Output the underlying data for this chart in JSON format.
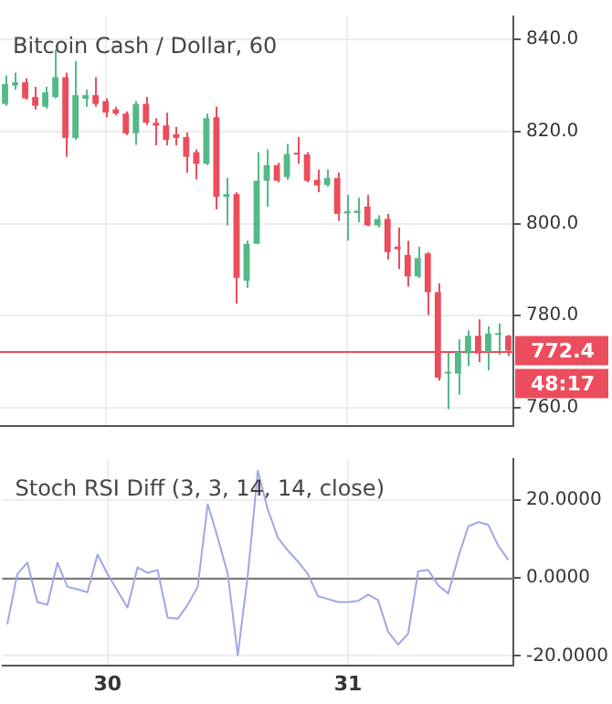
{
  "chart_data": [
    {
      "type": "candlestick",
      "title": "Bitcoin Cash / Dollar, 60",
      "categories": [
        null,
        null,
        null,
        null,
        null,
        null,
        null,
        null,
        null,
        null,
        "30",
        null,
        null,
        null,
        null,
        null,
        null,
        null,
        null,
        null,
        null,
        null,
        null,
        null,
        null,
        null,
        null,
        null,
        null,
        null,
        null,
        null,
        null,
        null,
        "31",
        null,
        null,
        null,
        null,
        null,
        null,
        null,
        null,
        null,
        null,
        null,
        null,
        null,
        null,
        null,
        null
      ],
      "ohlc": [
        [
          826.0,
          832.2,
          825.6,
          830.3
        ],
        [
          830.0,
          832.8,
          829.1,
          830.7
        ],
        [
          830.7,
          831.6,
          826.9,
          827.2
        ],
        [
          827.5,
          829.7,
          824.8,
          825.6
        ],
        [
          825.4,
          829.7,
          825.0,
          828.5
        ],
        [
          827.5,
          837.8,
          827.2,
          831.8
        ],
        [
          831.8,
          832.8,
          814.5,
          818.6
        ],
        [
          818.6,
          835.3,
          818.2,
          827.9
        ],
        [
          827.1,
          829.1,
          825.4,
          827.9
        ],
        [
          827.9,
          831.8,
          825.4,
          826.0
        ],
        [
          826.6,
          827.2,
          823.1,
          824.1
        ],
        [
          824.8,
          825.4,
          823.5,
          823.9
        ],
        [
          823.9,
          824.4,
          819.2,
          819.6
        ],
        [
          819.6,
          826.6,
          817.1,
          826.0
        ],
        [
          826.0,
          827.5,
          821.4,
          821.9
        ],
        [
          821.9,
          822.9,
          817.0,
          821.3
        ],
        [
          821.3,
          824.1,
          817.0,
          818.2
        ],
        [
          819.4,
          821.0,
          817.0,
          818.6
        ],
        [
          818.8,
          819.8,
          811.1,
          814.5
        ],
        [
          815.5,
          816.1,
          809.6,
          813.0
        ],
        [
          813.0,
          823.9,
          812.7,
          822.9
        ],
        [
          823.1,
          825.4,
          803.1,
          805.8
        ],
        [
          805.8,
          809.9,
          799.6,
          806.4
        ],
        [
          806.4,
          806.8,
          782.6,
          788.2
        ],
        [
          787.6,
          796.3,
          786.0,
          795.6
        ],
        [
          795.6,
          815.5,
          795.6,
          809.3
        ],
        [
          809.3,
          816.1,
          803.7,
          812.7
        ],
        [
          812.7,
          813.2,
          809.0,
          809.3
        ],
        [
          810.1,
          817.3,
          809.5,
          815.1
        ],
        [
          815.3,
          818.8,
          813.0,
          815.0
        ],
        [
          815.0,
          815.5,
          809.0,
          809.3
        ],
        [
          809.5,
          811.7,
          806.8,
          808.3
        ],
        [
          808.4,
          811.7,
          808.0,
          809.9
        ],
        [
          809.9,
          811.1,
          800.6,
          802.1
        ],
        [
          802.2,
          806.2,
          796.3,
          802.7
        ],
        [
          802.3,
          805.6,
          800.3,
          802.8
        ],
        [
          803.7,
          806.2,
          799.4,
          799.6
        ],
        [
          799.6,
          801.8,
          799.1,
          801.0
        ],
        [
          801.0,
          802.1,
          792.2,
          793.8
        ],
        [
          795.0,
          799.1,
          790.1,
          794.4
        ],
        [
          793.2,
          796.3,
          786.3,
          788.5
        ],
        [
          788.5,
          795.0,
          788.2,
          792.5
        ],
        [
          793.5,
          793.8,
          780.1,
          785.1
        ],
        [
          785.1,
          787.0,
          765.9,
          766.5
        ],
        [
          767.4,
          772.1,
          759.7,
          767.8
        ],
        [
          767.4,
          774.8,
          762.8,
          772.1
        ],
        [
          771.8,
          776.8,
          769.0,
          775.6
        ],
        [
          775.6,
          779.2,
          769.9,
          771.8
        ],
        [
          772.1,
          777.7,
          768.1,
          776.1
        ],
        [
          775.8,
          778.3,
          771.5,
          776.2
        ],
        [
          775.6,
          775.8,
          771.2,
          772.4
        ]
      ],
      "colors": [
        "#53b987",
        "#53b987",
        "#eb4d5c",
        "#eb4d5c",
        "#53b987",
        "#53b987",
        "#eb4d5c",
        "#53b987",
        "#53b987",
        "#eb4d5c",
        "#eb4d5c",
        "#eb4d5c",
        "#eb4d5c",
        "#53b987",
        "#eb4d5c",
        "#eb4d5c",
        "#eb4d5c",
        "#eb4d5c",
        "#eb4d5c",
        "#eb4d5c",
        "#53b987",
        "#eb4d5c",
        "#53b987",
        "#eb4d5c",
        "#53b987",
        "#53b987",
        "#53b987",
        "#eb4d5c",
        "#53b987",
        "#eb4d5c",
        "#eb4d5c",
        "#eb4d5c",
        "#53b987",
        "#eb4d5c",
        "#53b987",
        "#53b987",
        "#eb4d5c",
        "#53b987",
        "#eb4d5c",
        "#eb4d5c",
        "#eb4d5c",
        "#53b987",
        "#eb4d5c",
        "#eb4d5c",
        "#53b987",
        "#53b987",
        "#53b987",
        "#eb4d5c",
        "#53b987",
        "#53b987",
        "#eb4d5c"
      ],
      "ylim": [
        756,
        845
      ],
      "yticks": [
        {
          "value": 760,
          "label": "760.0"
        },
        {
          "value": 780,
          "label": "780.0"
        },
        {
          "value": 800,
          "label": "800.0"
        },
        {
          "value": 820,
          "label": "820.0"
        },
        {
          "value": 840,
          "label": "840.0"
        }
      ],
      "ref_lines": [
        {
          "axis": "y",
          "value": 772.4,
          "label": "772.4",
          "color": "#eb4d5c"
        }
      ],
      "annotations": [
        "48:17"
      ],
      "grid": true,
      "tick_labels": "y"
    },
    {
      "type": "line",
      "title": "Stoch RSI Diff (3, 3, 14, 14, close)",
      "categories": [
        null,
        null,
        null,
        null,
        null,
        null,
        null,
        null,
        null,
        null,
        "30",
        null,
        null,
        null,
        null,
        null,
        null,
        null,
        null,
        null,
        null,
        null,
        null,
        null,
        null,
        null,
        null,
        null,
        null,
        null,
        null,
        null,
        null,
        null,
        "31",
        null,
        null,
        null,
        null,
        null,
        null,
        null,
        null,
        null,
        null,
        null,
        null,
        null,
        null,
        null,
        null
      ],
      "series": [
        {
          "color": "#9ea7e6",
          "values": [
            -11.9,
            1.0,
            3.9,
            -6.2,
            -6.9,
            3.9,
            -2.3,
            -2.9,
            -3.7,
            6.0,
            1.0,
            -3.3,
            -7.6,
            2.7,
            1.3,
            2.0,
            -10.2,
            -10.5,
            -6.9,
            -2.3,
            18.9,
            10.3,
            1.0,
            -19.8,
            0.7,
            27.5,
            17.5,
            10.3,
            7.0,
            4.2,
            1.0,
            -4.7,
            -5.4,
            -6.2,
            -6.2,
            -5.9,
            -4.3,
            -5.7,
            -13.8,
            -17.1,
            -14.3,
            1.7,
            2.0,
            -1.9,
            -4.0,
            5.3,
            13.2,
            14.3,
            13.6,
            8.2,
            4.6
          ]
        }
      ],
      "ylim": [
        -22.4,
        30.5
      ],
      "yticks": [
        {
          "value": -20,
          "label": "-20.0000"
        },
        {
          "value": 0,
          "label": "0.0000"
        },
        {
          "value": 20,
          "label": "20.0000"
        }
      ],
      "ref_lines": [
        {
          "axis": "y",
          "value": 0,
          "color": "#787878"
        }
      ],
      "grid": true
    }
  ]
}
